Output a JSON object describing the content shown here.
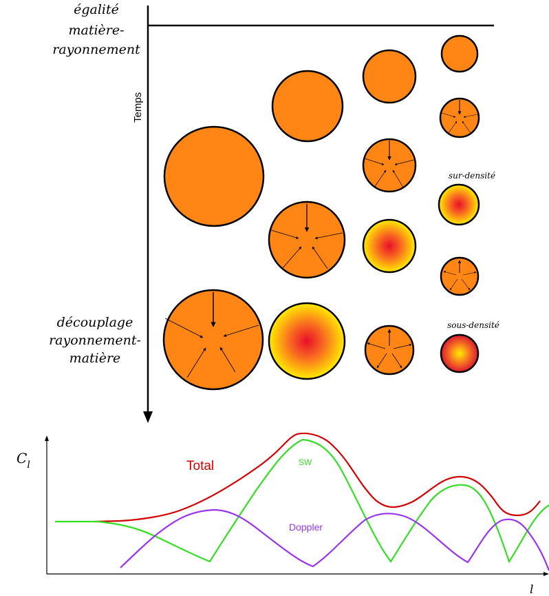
{
  "labels": {
    "top_left": [
      "égalité",
      "matière-",
      "rayonnement"
    ],
    "time_axis": "Temps",
    "bottom_left": [
      "découplage",
      "rayonnement-",
      "matière"
    ],
    "overdensity": "sur-densité",
    "underdensity": "sous-densité"
  },
  "spectrum": {
    "y_axis_symbol": "C",
    "y_axis_subscript": "l",
    "x_axis_symbol": "l",
    "curves": [
      {
        "name": "Total",
        "color": "#d40000"
      },
      {
        "name": "SW",
        "color": "#33dd22"
      },
      {
        "name": "Doppler",
        "color": "#9933ee"
      }
    ]
  },
  "colors": {
    "fill_orange": "#ff8514",
    "gradient_center_red": "#e8102a",
    "gradient_edge_yellow": "#ffec00",
    "outline": "#000000"
  }
}
